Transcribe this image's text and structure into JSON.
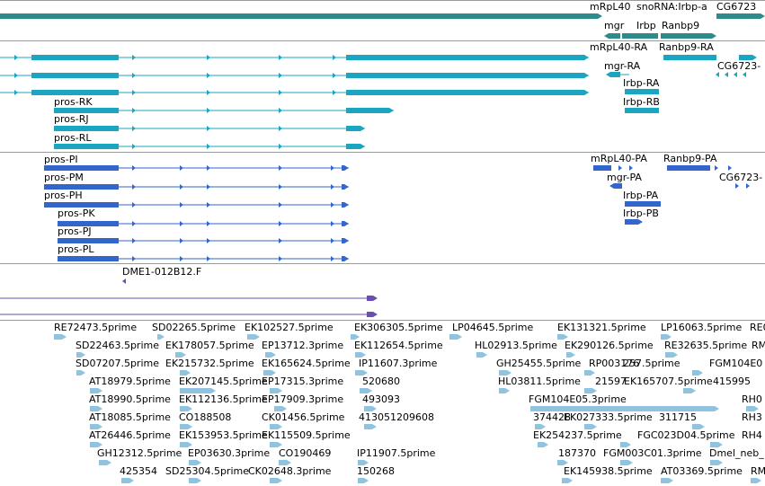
{
  "colors": {
    "gene": "#2e8b8b",
    "transcript": "#1aa5c0",
    "protein": "#3366cc",
    "probe": "#6a4fb0",
    "est": "#8fc3e0"
  },
  "tracks": {
    "gene": {
      "labels": [
        "mRpL40",
        "snoRNA:Irbp-a",
        "CG6723",
        "mgr",
        "Irbp",
        "Ranbp9"
      ]
    },
    "transcript": {
      "labels": [
        "mRpL40-RA",
        "Ranbp9-RA",
        "mgr-RA",
        "CG6723-",
        "Irbp-RA",
        "Irbp-RB",
        "pros-RK",
        "pros-RJ",
        "pros-RL"
      ]
    },
    "protein": {
      "labels": [
        "mRpL40-PA",
        "Ranbp9-PA",
        "pros-PI",
        "mgr-PA",
        "CG6723-",
        "pros-PM",
        "pros-PH",
        "Irbp-PA",
        "pros-PK",
        "Irbp-PB",
        "pros-PJ",
        "pros-PL"
      ]
    },
    "probe": {
      "labels": [
        "DME1-012B12.F"
      ]
    },
    "est": {
      "labels": [
        "RE72473.5prime",
        "SD02265.5prime",
        "EK102527.5prime",
        "EK306305.5prime",
        "LP04645.5prime",
        "EK131321.5prime",
        "LP16063.5prime",
        "RE0",
        "SD22463.5prime",
        "EK178057.5prime",
        "EP13712.3prime",
        "EK112654.5prime",
        "HL02913.5prime",
        "EK290126.5prime",
        "RE32635.5prime",
        "RM",
        "SD07207.5prime",
        "EK215732.5prime",
        "EK165624.5prime",
        "IP11607.3prime",
        "GH25455.5prime",
        "RP003176",
        "257.5prime",
        "FGM104E0",
        "AT18979.5prime",
        "EK207145.5prime",
        "EP17315.3prime",
        "520680",
        "HL03811.5prime",
        "21597",
        "EK165707.5prime",
        "415995",
        "AT18990.5prime",
        "EK112136.5prime",
        "EP17909.3prime",
        "493093",
        "FGM104E05.3prime",
        "RH0",
        "AT18085.5prime",
        "CO188508",
        "CK01456.5prime",
        "413051",
        "209608",
        "374428",
        "EK027333.5prime",
        "311715",
        "RH3",
        "AT26446.5prime",
        "EK153953.5prime",
        "EK115509.5prime",
        "EK254237.5prime",
        "FGC023D04.5prime",
        "RH4",
        "GH12312.5prime",
        "EP03630.3prime",
        "CO190469",
        "IP11907.5prime",
        "187370",
        "FGM003C01.3prime",
        "Dmel_neb_",
        "425354",
        "SD25304.5prime",
        "CK02648.3prime",
        "150268",
        "EK145938.5prime",
        "AT03369.5prime",
        "RM"
      ]
    }
  }
}
